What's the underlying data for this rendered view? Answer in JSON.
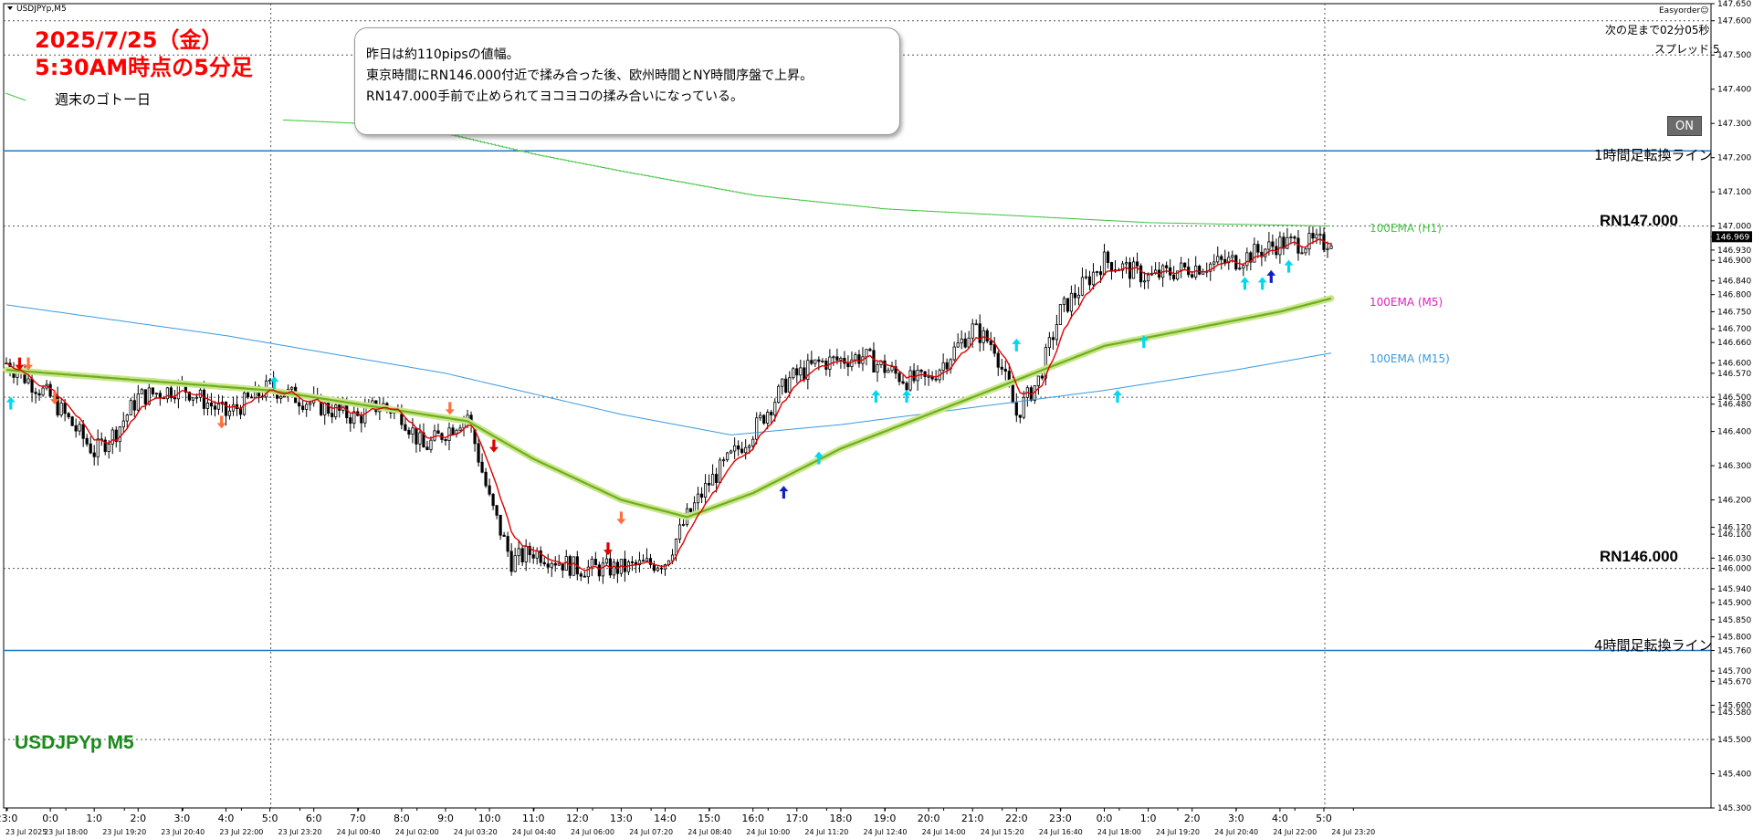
{
  "symbol": "USDJPYp,M5",
  "title_date": "2025/7/25（金）",
  "title_time": "5:30AM時点の5分足",
  "weekend_label": "週末のゴトー日",
  "big_symbol": "USDJPYp M5",
  "comment": [
    "昨日は約110pipsの値幅。",
    "東京時間にRN146.000付近で揉み合った後、欧州時間とNY時間序盤で上昇。",
    "RN147.000手前で止められてヨコヨコの揉み合いになっている。"
  ],
  "panel": {
    "easyorder": "Easyorder☺",
    "next_bar": "次の足まで02分05秒",
    "spread": "スプレッド:5",
    "on_label": "ON"
  },
  "lines": {
    "h1_reversal": "1時間足転換ライン",
    "h4_reversal": "4時間足転換ライン",
    "rn147": "RN147.000",
    "rn146": "RN146.000",
    "ema_h1": "100EMA (H1)",
    "ema_m5": "100EMA (M5)",
    "ema_m15": "100EMA (M15)"
  },
  "colors": {
    "background": "#ffffff",
    "candle": "#000000",
    "h_line": "#1e78c8",
    "ema_m5": "#90c830",
    "ema_h1": "#44c444",
    "ema_m15": "#3a9ae0",
    "fast_ma": "#e00000",
    "buy_arrow": "#00d8f0",
    "buy_arrow_strong": "#1020c0",
    "sell_arrow": "#ff7040",
    "sell_arrow_strong": "#e00000"
  },
  "chart_data": {
    "type": "candlestick",
    "timeframe": "M5",
    "ylim": [
      145.3,
      147.65
    ],
    "y_ticks": [
      "147.650",
      "147.600",
      "147.500",
      "147.400",
      "147.300",
      "147.200",
      "147.100",
      "147.000",
      "146.969",
      "146.930",
      "146.900",
      "146.840",
      "146.800",
      "146.750",
      "146.700",
      "146.660",
      "146.600",
      "146.570",
      "146.500",
      "146.480",
      "146.400",
      "146.300",
      "146.200",
      "146.120",
      "146.100",
      "146.030",
      "146.000",
      "145.940",
      "145.900",
      "145.850",
      "145.800",
      "145.760",
      "145.700",
      "145.670",
      "145.600",
      "145.580",
      "145.500",
      "145.400",
      "145.300"
    ],
    "y_tick_values": [
      147.65,
      147.6,
      147.5,
      147.4,
      147.3,
      147.2,
      147.1,
      147.0,
      146.969,
      146.93,
      146.9,
      146.84,
      146.8,
      146.75,
      146.7,
      146.66,
      146.6,
      146.57,
      146.5,
      146.48,
      146.4,
      146.3,
      146.2,
      146.12,
      146.1,
      146.03,
      146.0,
      145.94,
      145.9,
      145.85,
      145.8,
      145.76,
      145.7,
      145.67,
      145.6,
      145.58,
      145.5,
      145.4,
      145.3
    ],
    "current_price": 146.969,
    "hour_labels": [
      "23:0",
      "0:0",
      "1:0",
      "2:0",
      "3:0",
      "4:0",
      "5:0",
      "6:0",
      "7:0",
      "8:0",
      "9:0",
      "10:0",
      "11:0",
      "12:0",
      "13:0",
      "14:0",
      "15:0",
      "16:0",
      "17:0",
      "18:0",
      "19:0",
      "20:0",
      "21:0",
      "22:0",
      "23:0",
      "0:0",
      "1:0",
      "2:0",
      "3:0",
      "4:0",
      "5:0"
    ],
    "date_labels": [
      "23 Jul 2025",
      "23 Jul 18:00",
      "23 Jul 19:20",
      "23 Jul 20:40",
      "23 Jul 22:00",
      "23 Jul 23:20",
      "24 Jul 00:40",
      "24 Jul 02:00",
      "24 Jul 03:20",
      "24 Jul 04:40",
      "24 Jul 06:00",
      "24 Jul 07:20",
      "24 Jul 08:40",
      "24 Jul 10:00",
      "24 Jul 11:20",
      "24 Jul 12:40",
      "24 Jul 14:00",
      "24 Jul 15:20",
      "24 Jul 16:40",
      "24 Jul 18:00",
      "24 Jul 19:20",
      "24 Jul 20:40",
      "24 Jul 22:00",
      "24 Jul 23:20"
    ],
    "horizontal_lines": [
      {
        "label": "1時間足転換ライン",
        "price": 147.22
      },
      {
        "label": "RN147.000",
        "price": 147.0
      },
      {
        "label": "RN146.000",
        "price": 146.0
      },
      {
        "label": "4時間足転換ライン",
        "price": 145.76
      }
    ],
    "close_path": [
      {
        "t": 0,
        "p": 146.6
      },
      {
        "t": 1,
        "p": 146.5
      },
      {
        "t": 2,
        "p": 146.34
      },
      {
        "t": 2.5,
        "p": 146.4
      },
      {
        "t": 3,
        "p": 146.5
      },
      {
        "t": 4,
        "p": 146.53
      },
      {
        "t": 5,
        "p": 146.45
      },
      {
        "t": 6,
        "p": 146.53
      },
      {
        "t": 7,
        "p": 146.48
      },
      {
        "t": 8,
        "p": 146.44
      },
      {
        "t": 8.5,
        "p": 146.48
      },
      {
        "t": 9,
        "p": 146.45
      },
      {
        "t": 9.5,
        "p": 146.35
      },
      {
        "t": 10,
        "p": 146.4
      },
      {
        "t": 10.5,
        "p": 146.45
      },
      {
        "t": 11,
        "p": 146.2
      },
      {
        "t": 11.5,
        "p": 146.02
      },
      {
        "t": 12,
        "p": 146.05
      },
      {
        "t": 13,
        "p": 146.0
      },
      {
        "t": 14,
        "p": 146.0
      },
      {
        "t": 15,
        "p": 146.02
      },
      {
        "t": 15.5,
        "p": 146.15
      },
      {
        "t": 16,
        "p": 146.25
      },
      {
        "t": 17,
        "p": 146.4
      },
      {
        "t": 17.8,
        "p": 146.55
      },
      {
        "t": 18.5,
        "p": 146.6
      },
      {
        "t": 19.5,
        "p": 146.62
      },
      {
        "t": 20.5,
        "p": 146.55
      },
      {
        "t": 21,
        "p": 146.55
      },
      {
        "t": 22,
        "p": 146.7
      },
      {
        "t": 22.5,
        "p": 146.65
      },
      {
        "t": 23,
        "p": 146.45
      },
      {
        "t": 23.5,
        "p": 146.55
      },
      {
        "t": 24,
        "p": 146.75
      },
      {
        "t": 25,
        "p": 146.9
      },
      {
        "t": 26,
        "p": 146.85
      },
      {
        "t": 27,
        "p": 146.88
      },
      {
        "t": 28,
        "p": 146.9
      },
      {
        "t": 29,
        "p": 146.95
      },
      {
        "t": 30,
        "p": 146.95
      },
      {
        "t": 30.2,
        "p": 146.969
      }
    ],
    "ema_m5": [
      {
        "t": 0,
        "p": 146.58
      },
      {
        "t": 3,
        "p": 146.55
      },
      {
        "t": 6,
        "p": 146.52
      },
      {
        "t": 9,
        "p": 146.46
      },
      {
        "t": 10.5,
        "p": 146.43
      },
      {
        "t": 12,
        "p": 146.32
      },
      {
        "t": 14,
        "p": 146.2
      },
      {
        "t": 15.5,
        "p": 146.15
      },
      {
        "t": 17,
        "p": 146.22
      },
      {
        "t": 19,
        "p": 146.35
      },
      {
        "t": 21,
        "p": 146.45
      },
      {
        "t": 23,
        "p": 146.55
      },
      {
        "t": 25,
        "p": 146.65
      },
      {
        "t": 27,
        "p": 146.7
      },
      {
        "t": 29,
        "p": 146.75
      },
      {
        "t": 30.2,
        "p": 146.79
      }
    ],
    "ema_m15": [
      {
        "t": 0,
        "p": 146.77
      },
      {
        "t": 5,
        "p": 146.68
      },
      {
        "t": 10,
        "p": 146.57
      },
      {
        "t": 14,
        "p": 146.45
      },
      {
        "t": 16.5,
        "p": 146.39
      },
      {
        "t": 19,
        "p": 146.42
      },
      {
        "t": 22,
        "p": 146.47
      },
      {
        "t": 25,
        "p": 146.52
      },
      {
        "t": 28,
        "p": 146.58
      },
      {
        "t": 30.2,
        "p": 146.63
      }
    ],
    "ema_h1": [
      {
        "t": 6.3,
        "p": 147.31
      },
      {
        "t": 8,
        "p": 147.3
      },
      {
        "t": 10,
        "p": 147.27
      },
      {
        "t": 12,
        "p": 147.21
      },
      {
        "t": 14,
        "p": 147.16
      },
      {
        "t": 17,
        "p": 147.09
      },
      {
        "t": 20,
        "p": 147.05
      },
      {
        "t": 23,
        "p": 147.03
      },
      {
        "t": 26,
        "p": 147.01
      },
      {
        "t": 30.2,
        "p": 147.0
      }
    ],
    "signals": [
      {
        "t": 0.1,
        "p": 146.48,
        "dir": "up"
      },
      {
        "t": 0.3,
        "p": 146.6,
        "dir": "down_strong"
      },
      {
        "t": 0.5,
        "p": 146.6,
        "dir": "down"
      },
      {
        "t": 1.1,
        "p": 146.5,
        "dir": "down"
      },
      {
        "t": 4.9,
        "p": 146.43,
        "dir": "down"
      },
      {
        "t": 6.1,
        "p": 146.54,
        "dir": "up"
      },
      {
        "t": 10.1,
        "p": 146.47,
        "dir": "down"
      },
      {
        "t": 11.1,
        "p": 146.36,
        "dir": "down_strong"
      },
      {
        "t": 14.0,
        "p": 146.15,
        "dir": "down"
      },
      {
        "t": 13.7,
        "p": 146.06,
        "dir": "down_strong"
      },
      {
        "t": 17.7,
        "p": 146.22,
        "dir": "up_strong"
      },
      {
        "t": 18.5,
        "p": 146.32,
        "dir": "up"
      },
      {
        "t": 19.8,
        "p": 146.5,
        "dir": "up"
      },
      {
        "t": 20.5,
        "p": 146.5,
        "dir": "up"
      },
      {
        "t": 23.0,
        "p": 146.65,
        "dir": "up"
      },
      {
        "t": 25.3,
        "p": 146.5,
        "dir": "up"
      },
      {
        "t": 25.9,
        "p": 146.66,
        "dir": "up"
      },
      {
        "t": 28.2,
        "p": 146.83,
        "dir": "up"
      },
      {
        "t": 28.6,
        "p": 146.83,
        "dir": "up"
      },
      {
        "t": 28.8,
        "p": 146.85,
        "dir": "up_strong"
      },
      {
        "t": 29.2,
        "p": 146.88,
        "dir": "up"
      }
    ]
  }
}
